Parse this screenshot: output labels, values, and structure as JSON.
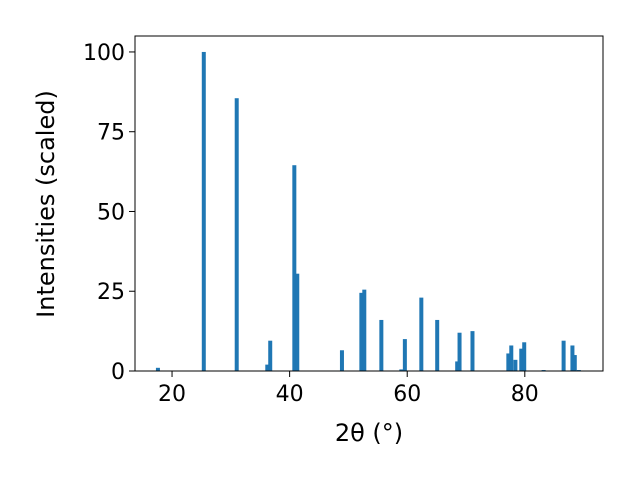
{
  "chart_data": {
    "type": "bar",
    "x_label": "2θ (°)",
    "y_label": "Intensities (scaled)",
    "x": [
      17.6,
      25.4,
      31.0,
      36.2,
      36.7,
      40.8,
      41.3,
      48.9,
      52.2,
      52.7,
      55.6,
      59.0,
      59.6,
      62.4,
      65.1,
      68.5,
      68.9,
      71.1,
      77.2,
      77.7,
      78.4,
      79.4,
      79.9,
      83.2,
      86.6,
      88.1,
      88.5,
      89.2
    ],
    "values": [
      1,
      100,
      85.5,
      2,
      9.5,
      64.5,
      30.5,
      6.5,
      24.5,
      25.5,
      16,
      0.5,
      10,
      23,
      16,
      3,
      12,
      12.5,
      5.5,
      8,
      3.5,
      7,
      9,
      0.3,
      9.5,
      8,
      5,
      0.3
    ],
    "color": "#1f77b4",
    "xlim": [
      13.7,
      93.3
    ],
    "xticks": [
      20,
      40,
      60,
      80
    ],
    "ylim": [
      0,
      105
    ],
    "yticks": [
      0,
      25,
      50,
      75,
      100
    ],
    "grid": false
  }
}
